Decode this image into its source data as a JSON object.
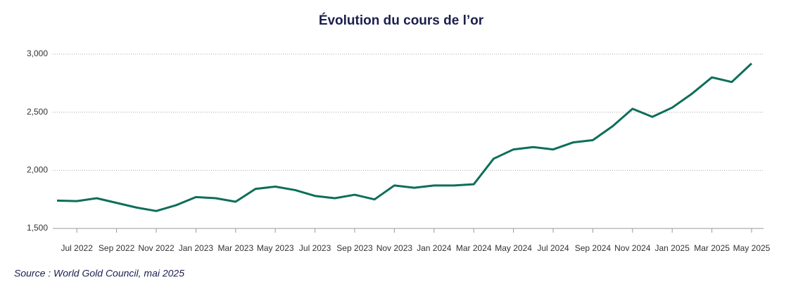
{
  "chart_data": {
    "type": "line",
    "title": "Évolution du cours de l’or",
    "source": "Source : World Gold Council, mai 2025",
    "x": [
      "Jun 2022",
      "Jul 2022",
      "Aug 2022",
      "Sep 2022",
      "Oct 2022",
      "Nov 2022",
      "Dec 2022",
      "Jan 2023",
      "Feb 2023",
      "Mar 2023",
      "Apr 2023",
      "May 2023",
      "Jun 2023",
      "Jul 2023",
      "Aug 2023",
      "Sep 2023",
      "Oct 2023",
      "Nov 2023",
      "Dec 2023",
      "Jan 2024",
      "Feb 2024",
      "Mar 2024",
      "Apr 2024",
      "May 2024",
      "Jun 2024",
      "Jul 2024",
      "Aug 2024",
      "Sep 2024",
      "Oct 2024",
      "Nov 2024",
      "Dec 2024",
      "Jan 2025",
      "Feb 2025",
      "Mar 2025",
      "Apr 2025",
      "May 2025"
    ],
    "series": [
      {
        "name": "Or",
        "color": "#0d6e5a",
        "values": [
          1740,
          1735,
          1760,
          1720,
          1680,
          1650,
          1700,
          1770,
          1760,
          1730,
          1840,
          1860,
          1830,
          1780,
          1760,
          1790,
          1750,
          1870,
          1850,
          1870,
          1870,
          1880,
          2100,
          2180,
          2200,
          2180,
          2240,
          2260,
          2380,
          2530,
          2460,
          2540,
          2660,
          2800,
          2760,
          2920
        ]
      }
    ],
    "xticks": [
      "Jul 2022",
      "Sep 2022",
      "Nov 2022",
      "Jan 2023",
      "Mar 2023",
      "May 2023",
      "Jul 2023",
      "Sep 2023",
      "Nov 2023",
      "Jan 2024",
      "Mar 2024",
      "May 2024",
      "Jul 2024",
      "Sep 2024",
      "Nov 2024",
      "Jan 2025",
      "Mar 2025",
      "May 2025"
    ],
    "ylim": [
      1500,
      3000
    ],
    "yticks": [
      {
        "value": 1500,
        "label": "1,500"
      },
      {
        "value": 2000,
        "label": "2,000"
      },
      {
        "value": 2500,
        "label": "2,500"
      },
      {
        "value": 3000,
        "label": "3,000"
      }
    ],
    "grid": true
  }
}
